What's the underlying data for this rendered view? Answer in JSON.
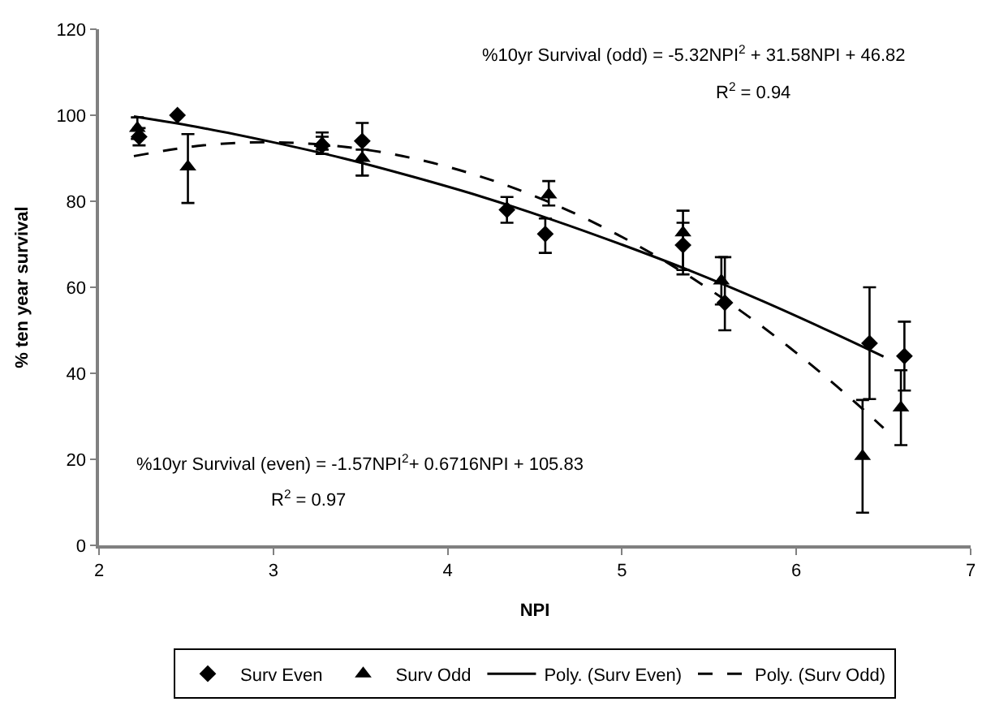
{
  "chart_data": {
    "type": "scatter",
    "xlabel": "NPI",
    "ylabel": "% ten year survival",
    "xlim": [
      2,
      7
    ],
    "xticks": [
      2,
      3,
      4,
      5,
      6,
      7
    ],
    "ylim": [
      0,
      120
    ],
    "yticks": [
      0,
      20,
      40,
      60,
      80,
      100,
      120
    ],
    "legend": "bottom",
    "annotations": [
      "%10yr Survival (odd) = -5.32NPI$^{2}$ + 31.58NPI + 46.82",
      "R$^{2}$ = 0.94",
      "%10yr Survival (even) = -1.57NPI$^{2}$+ 0.6716NPI + 105.83",
      "R$^{2}$ = 0.97"
    ],
    "series": [
      {
        "name": "Surv Even",
        "marker": "diamond",
        "color": "#000000",
        "x": [
          2.23,
          2.45,
          3.28,
          3.51,
          4.34,
          4.56,
          5.35,
          5.59,
          6.42,
          6.62
        ],
        "values": [
          95,
          100,
          93,
          94,
          78,
          72.4,
          69.8,
          56.4,
          47,
          44
        ],
        "errors": [
          2,
          null,
          2,
          [
            86,
            98.2
          ],
          3,
          [
            68,
            76
          ],
          [
            64,
            75
          ],
          [
            50,
            67
          ],
          [
            34,
            60
          ],
          [
            36,
            52
          ]
        ]
      },
      {
        "name": "Surv Odd",
        "marker": "triangle",
        "color": "#000000",
        "x": [
          2.22,
          2.51,
          3.28,
          3.51,
          4.34,
          4.58,
          5.35,
          5.57,
          6.38,
          6.6
        ],
        "values": [
          97,
          88,
          93.5,
          90,
          null,
          81.5,
          72.7,
          61.5,
          20.7,
          32
        ],
        "errors": [
          2.5,
          [
            79.6,
            95.6
          ],
          [
            92,
            96
          ],
          [
            86,
            92
          ],
          null,
          [
            79,
            84.7
          ],
          [
            63,
            77.8
          ],
          [
            56,
            67
          ],
          [
            7.6,
            33.8
          ],
          [
            23.3,
            40.7
          ]
        ]
      },
      {
        "name": "Poly. (Surv Even)",
        "type": "line",
        "line_style": "solid",
        "color": "#000000",
        "x": [
          2.2,
          2.6,
          3.0,
          3.4,
          3.8,
          4.2,
          4.6,
          5.0,
          5.4,
          5.8,
          6.2,
          6.5
        ],
        "values": [
          99.7,
          97.0,
          93.7,
          90.0,
          85.7,
          81.0,
          75.7,
          69.9,
          63.7,
          56.9,
          49.6,
          43.9
        ]
      },
      {
        "name": "Poly. (Surv Odd)",
        "type": "line",
        "line_style": "dashed",
        "color": "#000000",
        "x": [
          2.2,
          2.6,
          3.0,
          3.4,
          3.8,
          4.2,
          4.6,
          5.0,
          5.4,
          5.8,
          6.2,
          6.5
        ],
        "values": [
          90.5,
          93.0,
          93.7,
          92.7,
          90.0,
          85.6,
          79.5,
          71.7,
          62.2,
          51.0,
          38.1,
          27.3
        ]
      }
    ]
  }
}
